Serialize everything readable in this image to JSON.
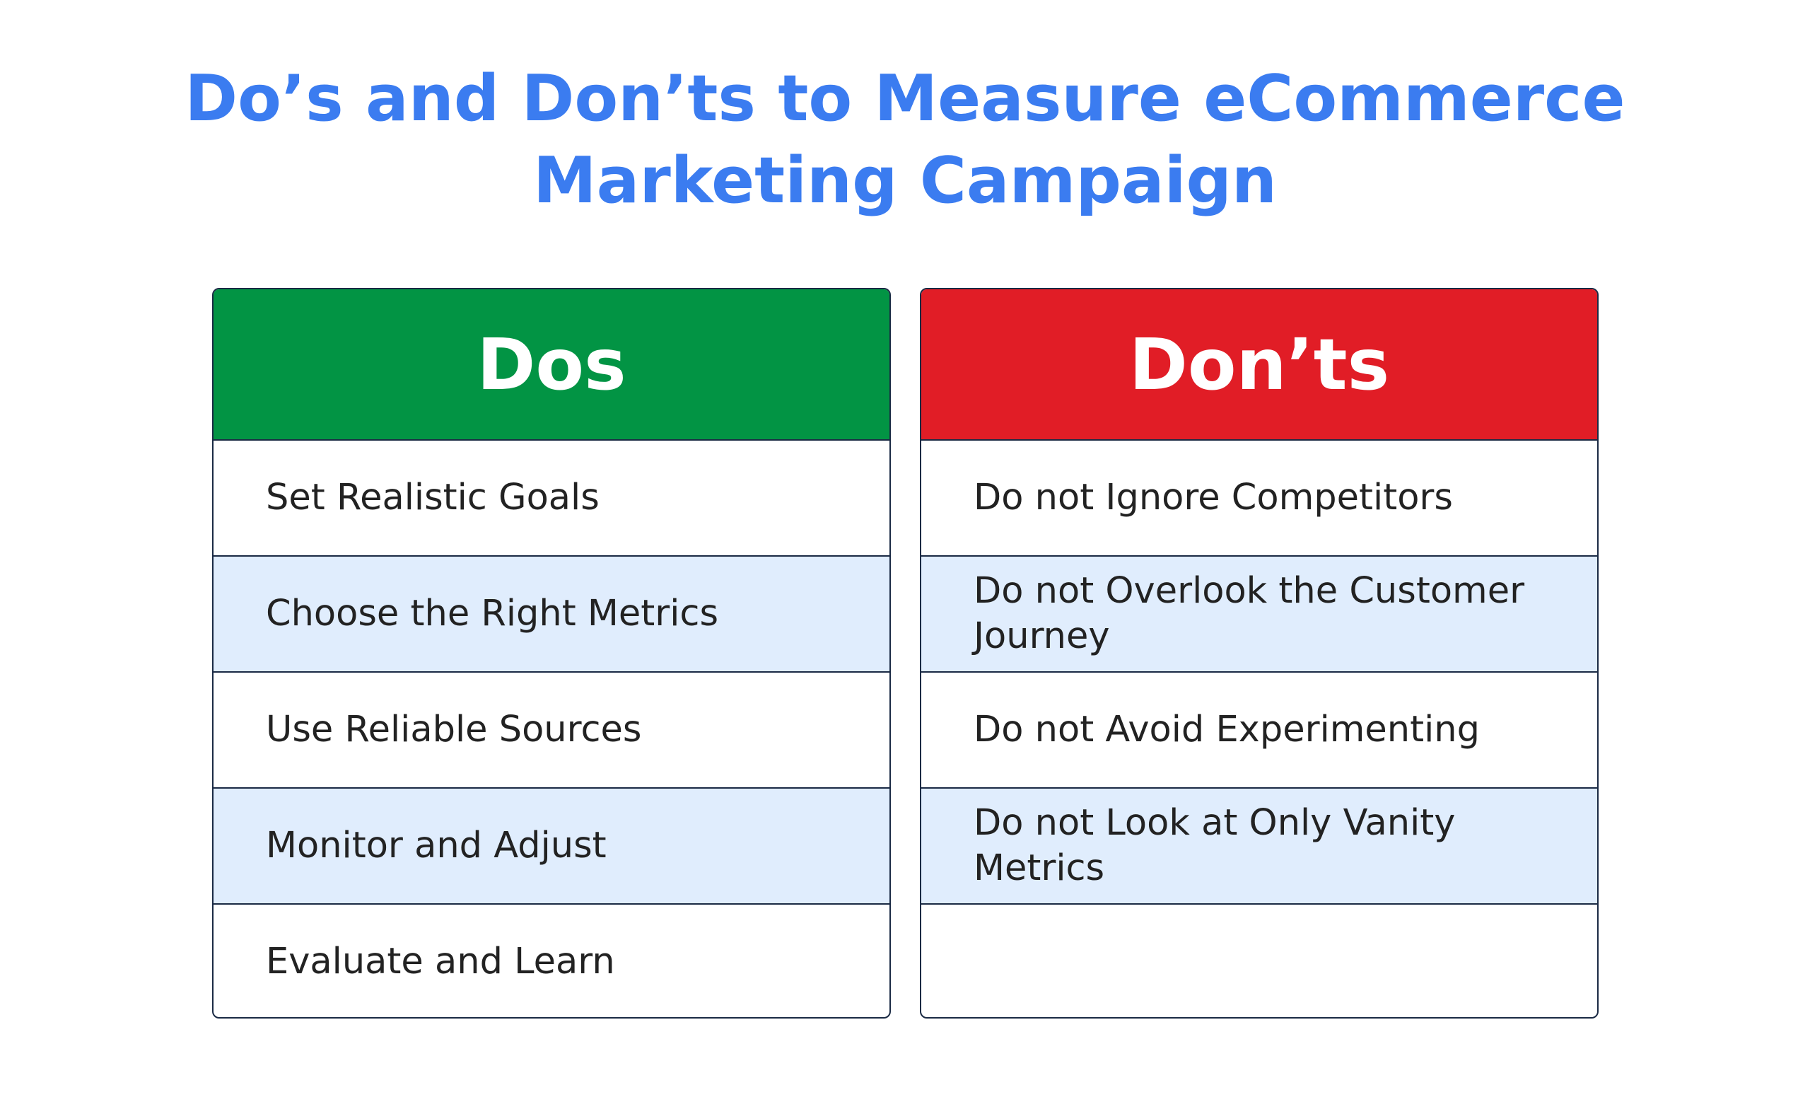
{
  "title": "Do’s and Don’ts to Measure eCommerce Marketing Campaign",
  "colors": {
    "title": "#3b7cf0",
    "dos_header": "#029444",
    "donts_header": "#e11d26",
    "alt_row": "#e0edfd"
  },
  "dos": {
    "header": "Dos",
    "items": [
      "Set Realistic Goals",
      "Choose the Right Metrics",
      "Use Reliable Sources",
      "Monitor and Adjust",
      "Evaluate and Learn"
    ]
  },
  "donts": {
    "header": "Don’ts",
    "items": [
      "Do not Ignore Competitors",
      "Do not Overlook the Customer Journey",
      "Do not Avoid Experimenting",
      "Do not Look at Only Vanity Metrics",
      ""
    ]
  }
}
